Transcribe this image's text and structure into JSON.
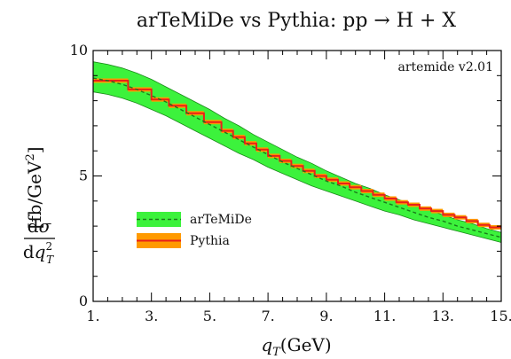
{
  "chart_data": {
    "type": "line",
    "title": "arTeMiDe vs Pythia: pp → H + X",
    "xlabel": "q_T(GeV)",
    "ylabel": "dσ/dq_T² [fb/GeV²]",
    "xlim": [
      1,
      15
    ],
    "ylim": [
      0,
      10
    ],
    "x_ticks": [
      "1.",
      "3.",
      "5.",
      "7.",
      "9.",
      "11.",
      "13.",
      "15."
    ],
    "y_ticks": [
      "0",
      "5",
      "10"
    ],
    "annotation": "artemide v2.01",
    "legend_position": "left",
    "series": [
      {
        "name": "arTeMiDe",
        "style": "dashed line with band",
        "color": "#1a7a1a",
        "band_color": "#3cf23c",
        "x": [
          1,
          1.5,
          2,
          2.5,
          3,
          3.5,
          4,
          4.5,
          5,
          5.5,
          6,
          6.5,
          7,
          7.5,
          8,
          8.5,
          9,
          9.5,
          10,
          10.5,
          11,
          11.5,
          12,
          12.5,
          13,
          13.5,
          14,
          14.5,
          15
        ],
        "values": [
          8.9,
          8.8,
          8.65,
          8.45,
          8.2,
          7.95,
          7.65,
          7.35,
          7.05,
          6.75,
          6.45,
          6.15,
          5.85,
          5.55,
          5.3,
          5.05,
          4.8,
          4.6,
          4.35,
          4.15,
          3.95,
          3.75,
          3.55,
          3.35,
          3.2,
          3.0,
          2.85,
          2.7,
          2.55
        ],
        "band_upper": [
          9.55,
          9.45,
          9.3,
          9.1,
          8.85,
          8.55,
          8.25,
          7.95,
          7.65,
          7.3,
          7.0,
          6.65,
          6.35,
          6.05,
          5.75,
          5.5,
          5.2,
          4.95,
          4.7,
          4.5,
          4.25,
          4.05,
          3.85,
          3.65,
          3.45,
          3.25,
          3.1,
          2.9,
          2.75
        ],
        "band_lower": [
          8.35,
          8.25,
          8.1,
          7.9,
          7.65,
          7.4,
          7.1,
          6.8,
          6.5,
          6.2,
          5.9,
          5.65,
          5.35,
          5.1,
          4.85,
          4.6,
          4.4,
          4.2,
          4.0,
          3.8,
          3.6,
          3.45,
          3.25,
          3.1,
          2.95,
          2.8,
          2.65,
          2.5,
          2.35
        ]
      },
      {
        "name": "Pythia",
        "style": "step histogram with band",
        "color": "#e8201a",
        "band_color": "#ff9a00",
        "bin_edges": [
          1,
          2.2,
          3,
          3.6,
          4.2,
          4.8,
          5.4,
          5.8,
          6.2,
          6.6,
          7,
          7.4,
          7.8,
          8.2,
          8.6,
          9,
          9.4,
          9.8,
          10.2,
          10.6,
          11,
          11.4,
          11.8,
          12.2,
          12.6,
          13,
          13.4,
          13.8,
          14.2,
          14.6,
          15
        ],
        "values": [
          8.8,
          8.45,
          8.05,
          7.8,
          7.5,
          7.15,
          6.8,
          6.55,
          6.3,
          6.05,
          5.8,
          5.6,
          5.4,
          5.2,
          5.0,
          4.85,
          4.7,
          4.55,
          4.4,
          4.25,
          4.1,
          3.95,
          3.85,
          3.7,
          3.6,
          3.45,
          3.35,
          3.2,
          3.05,
          2.95
        ]
      }
    ]
  }
}
